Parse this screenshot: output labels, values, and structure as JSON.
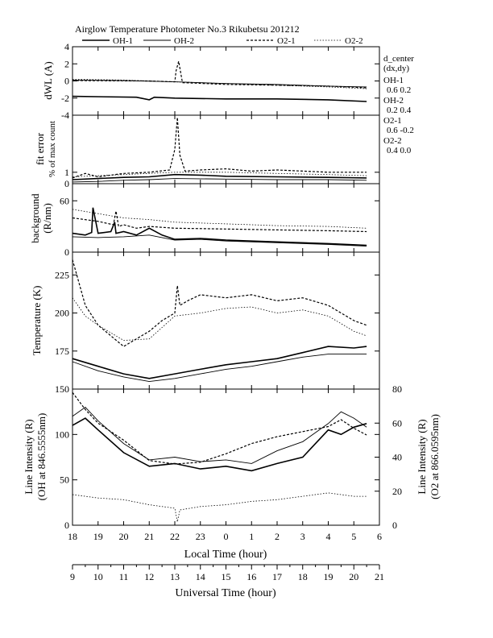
{
  "header": {
    "title": "Airglow Temperature Photometer No.3  Rikubetsu    201212"
  },
  "legend": [
    {
      "name": "OH-1",
      "dash": "solid",
      "width": 1.6
    },
    {
      "name": "OH-2",
      "dash": "solid",
      "width": 0.9
    },
    {
      "name": "O2-1",
      "dash": "3,2",
      "width": 1.2
    },
    {
      "name": "O2-2",
      "dash": "1.5,2",
      "width": 0.8
    }
  ],
  "side_note": {
    "heading": "d_center",
    "subheading": "(dx,dy)",
    "entries": [
      {
        "name": "OH-1",
        "value": "0.6  0.2"
      },
      {
        "name": "OH-2",
        "value": "0.2  0.4"
      },
      {
        "name": "O2-1",
        "value": "0.6  -0.2"
      },
      {
        "name": "O2-2",
        "value": "0.4  0.0"
      }
    ]
  },
  "x_axes": {
    "local_label": "Local Time (hour)",
    "local_ticks": [
      "18",
      "19",
      "20",
      "21",
      "22",
      "23",
      "0",
      "1",
      "2",
      "3",
      "4",
      "5",
      "6"
    ],
    "ut_label": "Universal Time (hour)",
    "ut_ticks": [
      "9",
      "10",
      "11",
      "12",
      "13",
      "14",
      "15",
      "16",
      "17",
      "18",
      "19",
      "20",
      "21"
    ]
  },
  "chart_data": [
    {
      "type": "line",
      "panel": "dWL",
      "ylabel": "dWL (A)",
      "ylim": [
        -4,
        4
      ],
      "yticks": [
        "-4",
        "-2",
        "0",
        "2",
        "4"
      ],
      "x_unit": "Local Time (hour, 18 = 18:00, 30 = 06:00 next day)",
      "series": [
        {
          "name": "OH-1",
          "x": [
            18.0,
            20.5,
            21.0,
            21.2,
            22.0,
            24.0,
            26.0,
            28.0,
            29.5
          ],
          "y": [
            -1.8,
            -1.9,
            -2.2,
            -1.9,
            -2.0,
            -2.1,
            -2.1,
            -2.2,
            -2.4
          ]
        },
        {
          "name": "OH-2",
          "x": [
            18.0,
            20.0,
            22.0,
            24.0,
            26.0,
            28.0,
            29.5
          ],
          "y": [
            0.1,
            0.05,
            -0.1,
            -0.3,
            -0.4,
            -0.6,
            -0.7
          ]
        },
        {
          "name": "O2-1",
          "x": [
            18.0,
            21.0,
            22.0,
            22.05,
            22.15,
            22.3,
            24.0,
            26.0,
            28.0,
            29.5
          ],
          "y": [
            0.05,
            0.0,
            -0.1,
            1.2,
            2.3,
            -0.2,
            -0.4,
            -0.5,
            -0.6,
            -0.8
          ]
        },
        {
          "name": "O2-2",
          "x": [
            18.0,
            20.0,
            22.0,
            24.0,
            26.0,
            28.0,
            29.5
          ],
          "y": [
            0.2,
            0.1,
            -0.1,
            -0.3,
            -0.5,
            -0.7,
            -0.9
          ]
        }
      ]
    },
    {
      "type": "line",
      "panel": "fit error",
      "ylabel": "fit error",
      "ylabel2": "% of max count",
      "ylim": [
        0,
        6
      ],
      "yticks": [
        "0",
        "1"
      ],
      "series": [
        {
          "name": "OH-1",
          "x": [
            18.0,
            19.0,
            20.0,
            21.0,
            22.0,
            23.0,
            24.0,
            26.0,
            28.0,
            29.5
          ],
          "y": [
            0.35,
            0.45,
            0.55,
            0.6,
            0.8,
            0.75,
            0.65,
            0.6,
            0.55,
            0.5
          ]
        },
        {
          "name": "OH-2",
          "x": [
            18.0,
            19.0,
            20.0,
            21.0,
            22.0,
            24.0,
            26.0,
            28.0,
            29.5
          ],
          "y": [
            0.15,
            0.2,
            0.3,
            0.35,
            0.45,
            0.4,
            0.35,
            0.35,
            0.3
          ]
        },
        {
          "name": "O2-1",
          "x": [
            18.0,
            18.5,
            19.0,
            20.0,
            21.0,
            21.8,
            22.0,
            22.1,
            22.2,
            22.4,
            23.0,
            24.0,
            25.0,
            26.0,
            27.0,
            28.0,
            29.5
          ],
          "y": [
            0.5,
            0.9,
            0.6,
            0.9,
            1.0,
            1.2,
            3.0,
            5.8,
            2.5,
            1.1,
            1.2,
            1.3,
            1.1,
            1.2,
            1.1,
            1.0,
            1.0
          ]
        },
        {
          "name": "O2-2",
          "x": [
            18.0,
            20.0,
            22.0,
            24.0,
            26.0,
            28.0,
            29.5
          ],
          "y": [
            0.6,
            0.8,
            1.0,
            1.0,
            0.9,
            0.8,
            0.7
          ]
        }
      ]
    },
    {
      "type": "line",
      "panel": "background",
      "ylabel": "background",
      "ylabel2": "(R/nm)",
      "ylim": [
        0,
        80
      ],
      "yticks": [
        "0",
        "60"
      ],
      "series": [
        {
          "name": "OH-1",
          "x": [
            18.0,
            18.5,
            18.75,
            18.8,
            19.0,
            19.5,
            19.65,
            19.7,
            20.0,
            20.5,
            21.0,
            21.5,
            22.0,
            23.0,
            24.0,
            26.0,
            28.0,
            29.5
          ],
          "y": [
            22,
            20,
            23,
            52,
            22,
            24,
            35,
            22,
            24,
            20,
            28,
            20,
            15,
            16,
            14,
            12,
            10,
            8
          ]
        },
        {
          "name": "OH-2",
          "x": [
            18.0,
            19.0,
            20.0,
            21.0,
            22.0,
            23.0,
            24.0,
            26.0,
            28.0,
            29.5
          ],
          "y": [
            18,
            17,
            18,
            20,
            14,
            15,
            13,
            11,
            9,
            7
          ]
        },
        {
          "name": "O2-1",
          "x": [
            18.0,
            19.0,
            19.6,
            19.7,
            19.8,
            20.0,
            20.5,
            21.0,
            22.0,
            24.0,
            26.0,
            28.0,
            29.5
          ],
          "y": [
            40,
            36,
            32,
            48,
            30,
            32,
            28,
            30,
            28,
            27,
            26,
            25,
            24
          ]
        },
        {
          "name": "O2-2",
          "x": [
            18.0,
            19.0,
            20.0,
            21.0,
            22.0,
            24.0,
            26.0,
            28.0,
            29.5
          ],
          "y": [
            50,
            45,
            40,
            38,
            35,
            33,
            31,
            30,
            28
          ]
        }
      ]
    },
    {
      "type": "line",
      "panel": "temperature",
      "ylabel": "Temperature (K)",
      "ylim": [
        150,
        240
      ],
      "yticks": [
        "175",
        "200",
        "225"
      ],
      "series": [
        {
          "name": "OH-1",
          "x": [
            18.0,
            19.0,
            20.0,
            21.0,
            22.0,
            23.0,
            24.0,
            25.0,
            26.0,
            27.0,
            28.0,
            29.0,
            29.5
          ],
          "y": [
            170,
            165,
            160,
            157,
            160,
            163,
            166,
            168,
            170,
            174,
            178,
            177,
            178
          ]
        },
        {
          "name": "OH-2",
          "x": [
            18.0,
            19.0,
            20.0,
            21.0,
            22.0,
            23.0,
            24.0,
            25.0,
            26.0,
            27.0,
            28.0,
            29.0,
            29.5
          ],
          "y": [
            168,
            162,
            158,
            155,
            157,
            160,
            163,
            165,
            168,
            171,
            173,
            173,
            173
          ]
        },
        {
          "name": "O2-1",
          "x": [
            18.0,
            18.5,
            19.0,
            20.0,
            21.0,
            21.5,
            22.0,
            22.1,
            22.2,
            22.5,
            23.0,
            24.0,
            25.0,
            26.0,
            27.0,
            28.0,
            29.0,
            29.5
          ],
          "y": [
            235,
            205,
            192,
            178,
            188,
            195,
            200,
            218,
            205,
            208,
            212,
            210,
            212,
            208,
            210,
            205,
            195,
            192
          ]
        },
        {
          "name": "O2-2",
          "x": [
            18.0,
            18.5,
            19.0,
            20.0,
            21.0,
            22.0,
            23.0,
            24.0,
            25.0,
            26.0,
            27.0,
            28.0,
            29.0,
            29.5
          ],
          "y": [
            210,
            198,
            192,
            182,
            183,
            198,
            200,
            203,
            204,
            200,
            202,
            198,
            188,
            185
          ]
        }
      ]
    },
    {
      "type": "line",
      "panel": "line intensity",
      "ylabel": "Line Intensity (R)",
      "ylabel2": "(OH at 846.5555nm)",
      "y2label": "Line Intensity (R)",
      "y2label2": "(O2 at 866.0595nm)",
      "ylim": [
        0,
        150
      ],
      "yticks": [
        "0",
        "50",
        "100",
        "150"
      ],
      "y2lim": [
        0,
        80
      ],
      "y2ticks": [
        "0",
        "20",
        "40",
        "60",
        "80"
      ],
      "series": [
        {
          "name": "OH-1",
          "axis": "left",
          "x": [
            18.0,
            18.5,
            19.0,
            20.0,
            21.0,
            22.0,
            23.0,
            24.0,
            25.0,
            26.0,
            27.0,
            28.0,
            28.5,
            29.0,
            29.5
          ],
          "y": [
            110,
            118,
            105,
            80,
            65,
            68,
            62,
            65,
            60,
            68,
            75,
            105,
            100,
            108,
            112
          ]
        },
        {
          "name": "OH-2",
          "axis": "left",
          "x": [
            18.0,
            18.5,
            19.0,
            20.0,
            21.0,
            22.0,
            23.0,
            24.0,
            25.0,
            26.0,
            27.0,
            28.0,
            28.5,
            29.0,
            29.5
          ],
          "y": [
            120,
            130,
            115,
            90,
            72,
            75,
            70,
            72,
            68,
            82,
            92,
            112,
            125,
            118,
            108
          ]
        },
        {
          "name": "O2-1",
          "axis": "right",
          "x": [
            18.0,
            18.5,
            19.0,
            20.0,
            21.0,
            22.0,
            23.0,
            24.0,
            25.0,
            26.0,
            27.0,
            28.0,
            28.5,
            29.0,
            29.5
          ],
          "y": [
            78,
            68,
            60,
            50,
            38,
            36,
            37,
            42,
            48,
            52,
            55,
            58,
            62,
            57,
            53
          ]
        },
        {
          "name": "O2-2",
          "axis": "right",
          "x": [
            18.0,
            19.0,
            20.0,
            21.0,
            22.0,
            22.1,
            22.2,
            23.0,
            24.0,
            25.0,
            26.0,
            27.0,
            28.0,
            29.0,
            29.5
          ],
          "y": [
            18,
            16,
            15,
            12,
            10,
            2,
            9,
            11,
            12,
            14,
            15,
            17,
            19,
            17,
            17
          ]
        }
      ]
    }
  ]
}
